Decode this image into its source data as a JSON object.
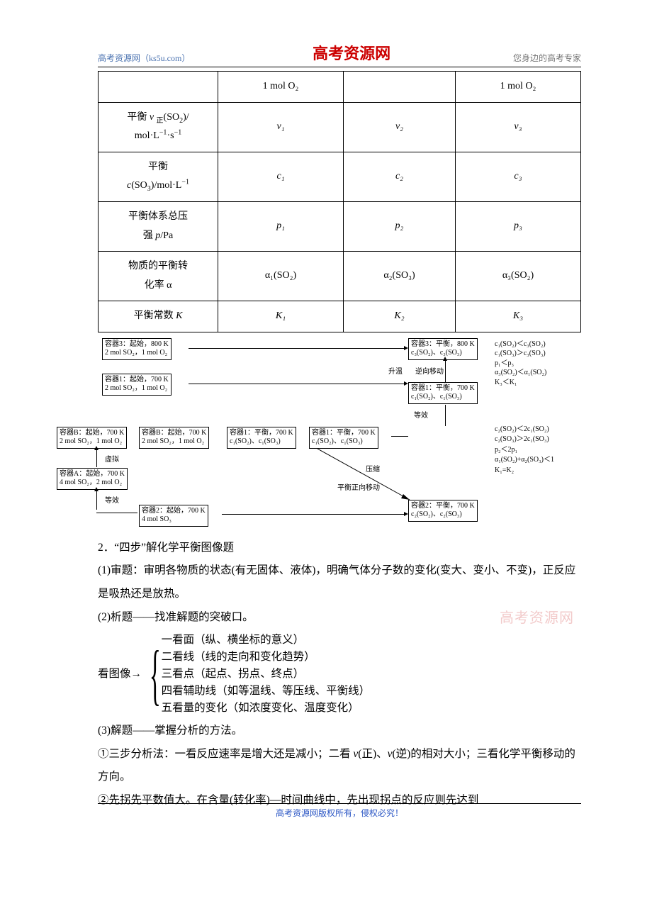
{
  "header": {
    "left": "高考资源网（ks5u.com）",
    "center": "高考资源网",
    "right": "您身边的高考专家"
  },
  "footer": "高考资源网版权所有，侵权必究！",
  "watermark": "高考资源网",
  "table": {
    "top_row": [
      "1 mol O₂",
      "",
      "1 mol O₂"
    ],
    "rows": [
      {
        "label_html": "平衡 <span class='ital'>v</span> <sub>正</sub>(SO<sub>2</sub>)/<br>mol·L<sup>−1</sup>·s<sup>−1</sup>",
        "c": [
          "v₁",
          "v₂",
          "v₃"
        ]
      },
      {
        "label_html": "平衡<br><span class='ital'>c</span>(SO<sub>3</sub>)/mol·L<sup>−1</sup>",
        "c": [
          "c₁",
          "c₂",
          "c₃"
        ]
      },
      {
        "label_html": "平衡体系总压<br>强 <span class='ital'>p</span>/Pa",
        "c": [
          "p₁",
          "p₂",
          "p₃"
        ]
      },
      {
        "label_html": "物质的平衡转<br>化率 α",
        "c": [
          "α₁(SO₂)",
          "α₂(SO₃)",
          "α₃(SO₂)"
        ]
      },
      {
        "label_html": "平衡常数 <span class='ital'>K</span>",
        "c": [
          "K₁",
          "K₂",
          "K₃"
        ]
      }
    ],
    "cell_font_family": "Times New Roman, serif",
    "cell_font_style": "italic"
  },
  "diagram": {
    "boxes": {
      "b1": "容器3：起始，800 K<br>2 mol SO₂，1 mol O₂",
      "b2": "容器1：起始，700 K<br>2 mol SO₂，1 mol O₂",
      "b3": "容器B：起始，700 K<br>2 mol SO₂，1 mol O₂",
      "b4": "容器B：起始，700 K<br>2 mol SO₂，1 mol O₂",
      "b5": "容器A：起始，700 K<br>4 mol SO₂，2 mol O₂",
      "b6": "容器2：起始，700 K<br>4 mol SO₃",
      "b7": "容器1：平衡，700 K<br>c₁(SO₂)、c₁(SO₃)",
      "b8": "容器1：平衡，700 K<br>c₁(SO₂)、c₁(SO₃)",
      "b9": "容器3：平衡，800 K<br>c₃(SO₂)、c₃(SO₃)",
      "b10": "容器1：平衡，700 K<br>c₁(SO₂)、c₁(SO₃)",
      "b11": "容器2：平衡，700 K<br>c₂(SO₂)、c₂(SO₃)"
    },
    "labels": {
      "l_xu": "虚拟",
      "l_dx": "等效",
      "l_dx2": "等效",
      "l_sw": "升温",
      "l_nyd": "逆向移动",
      "l_ys": "压缩",
      "l_zxyd": "平衡正向移动"
    },
    "side1": "c₁(SO₂)＜c₃(SO₂)<br>c₁(SO₃)＞c₃(SO₃)<br>p₁＜p₃<br>α₃(SO₂)＜α₁(SO₂)<br>K₃＜K₁",
    "side2": "c₂(SO₂)＜2c₁(SO₂)<br>c₂(SO₃)＞2c₁(SO₃)<br>p₂＜2p₁<br>α₁(SO₂)+α₂(SO₃)＜1<br>K₁=K₂"
  },
  "section2": {
    "title": "2．“四步”解化学平衡图像题",
    "p1": "(1)审题：审明各物质的状态(有无固体、液体)，明确气体分子数的变化(变大、变小、不变)，正反应是吸热还是放热。",
    "p2": "(2)析题——找准解题的突破口。",
    "brace_left": "看图像→",
    "brace_items": [
      "一看面（纵、横坐标的意义）",
      "二看线（线的走向和变化趋势）",
      "三看点（起点、拐点、终点）",
      "四看辅助线（如等温线、等压线、平衡线）",
      "五看量的变化（如浓度变化、温度变化）"
    ],
    "p3": "(3)解题——掌握分析的方法。",
    "p4_html": "①三步分析法：一看反应速率是增大还是减小；二看 <span class='ital'>v</span>(正)、<span class='ital'>v</span>(逆)的相对大小；三看化学平衡移动的方向。",
    "p5": "②先拐先平数值大。在含量(转化率)—时间曲线中，先出现拐点的反应则先达到"
  }
}
